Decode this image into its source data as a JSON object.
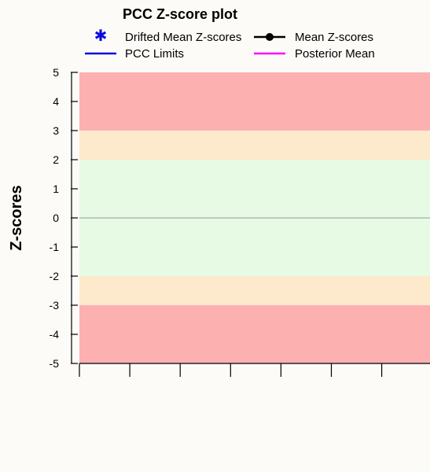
{
  "chart_data": {
    "type": "scatter",
    "title": "PCC Z-score plot",
    "ylabel": "Z-scores",
    "xlabel": "",
    "ylim": [
      -5,
      5
    ],
    "yticks": [
      5,
      4,
      3,
      2,
      1,
      0,
      -1,
      -2,
      -3,
      -4,
      -5
    ],
    "x_tick_count": 8,
    "zero_line": true,
    "legend": [
      {
        "label": "Drifted Mean Z-scores",
        "marker": "asterisk",
        "color": "#0a0adf"
      },
      {
        "label": "Mean Z-scores",
        "marker": "dot-line",
        "color": "#000000"
      },
      {
        "label": "PCC Limits",
        "marker": "line",
        "color": "#0a0adf"
      },
      {
        "label": "Posterior Mean",
        "marker": "line",
        "color": "#ff00ff"
      }
    ],
    "bands": [
      {
        "from": 3,
        "to": 5,
        "color": "#fdb0b0"
      },
      {
        "from": 2,
        "to": 3,
        "color": "#fde9cc"
      },
      {
        "from": -2,
        "to": 2,
        "color": "#e7fbe4"
      },
      {
        "from": -3,
        "to": -2,
        "color": "#fde9cc"
      },
      {
        "from": -5,
        "to": -3,
        "color": "#fdb0b0"
      }
    ],
    "series": []
  }
}
